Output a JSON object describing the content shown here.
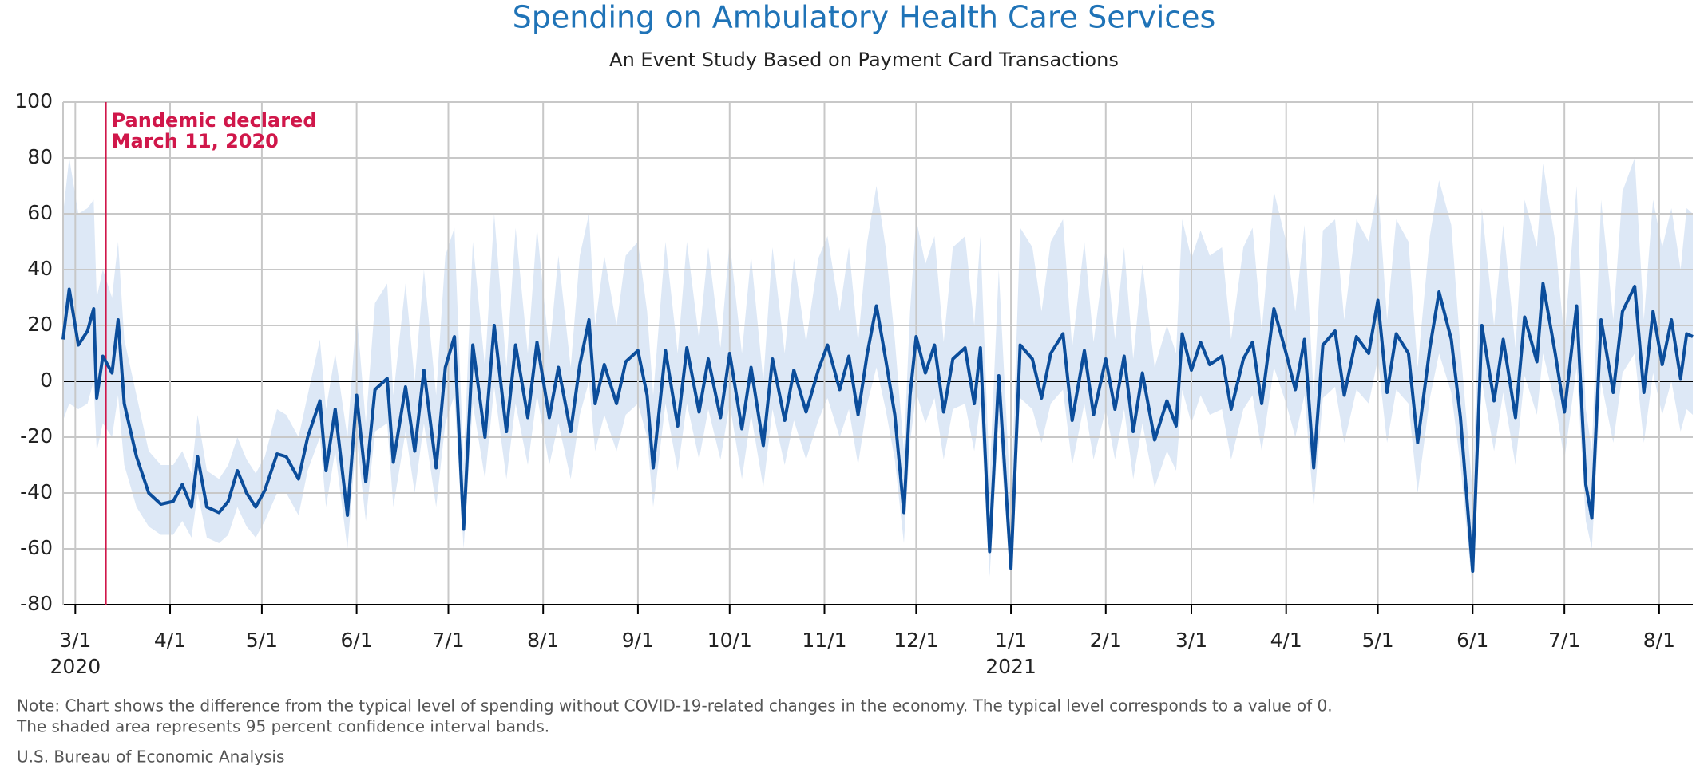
{
  "chart_data": {
    "type": "line",
    "title": "Spending on Ambulatory Health Care Services",
    "subtitle": "An Event Study Based on Payment Card Transactions",
    "color": "#0b4d9b",
    "band_color": "#dde8f6",
    "grid": true,
    "ylim": [
      -80,
      100
    ],
    "yticks": [
      -80,
      -60,
      -40,
      -20,
      0,
      20,
      40,
      60,
      80,
      100
    ],
    "xlim": [
      "2020-02-26",
      "2021-08-12"
    ],
    "xticks": [
      {
        "value": "2020-03-01",
        "label": "3/1"
      },
      {
        "value": "2020-04-01",
        "label": "4/1"
      },
      {
        "value": "2020-05-01",
        "label": "5/1"
      },
      {
        "value": "2020-06-01",
        "label": "6/1"
      },
      {
        "value": "2020-07-01",
        "label": "7/1"
      },
      {
        "value": "2020-08-01",
        "label": "8/1"
      },
      {
        "value": "2020-09-01",
        "label": "9/1"
      },
      {
        "value": "2020-10-01",
        "label": "10/1"
      },
      {
        "value": "2020-11-01",
        "label": "11/1"
      },
      {
        "value": "2020-12-01",
        "label": "12/1"
      },
      {
        "value": "2021-01-01",
        "label": "1/1"
      },
      {
        "value": "2021-02-01",
        "label": "2/1"
      },
      {
        "value": "2021-03-01",
        "label": "3/1"
      },
      {
        "value": "2021-04-01",
        "label": "4/1"
      },
      {
        "value": "2021-05-01",
        "label": "5/1"
      },
      {
        "value": "2021-06-01",
        "label": "6/1"
      },
      {
        "value": "2021-07-01",
        "label": "7/1"
      },
      {
        "value": "2021-08-01",
        "label": "8/1"
      }
    ],
    "year_labels": [
      {
        "value": "2020-03-01",
        "label": "2020"
      },
      {
        "value": "2021-01-01",
        "label": "2021"
      }
    ],
    "annotation": {
      "date": "2020-03-11",
      "lines": [
        "Pandemic declared",
        "March 11, 2020"
      ],
      "color": "#d0174a"
    },
    "x": [
      "2020-02-26",
      "2020-02-28",
      "2020-03-02",
      "2020-03-05",
      "2020-03-07",
      "2020-03-08",
      "2020-03-10",
      "2020-03-13",
      "2020-03-15",
      "2020-03-17",
      "2020-03-21",
      "2020-03-25",
      "2020-03-29",
      "2020-04-02",
      "2020-04-05",
      "2020-04-08",
      "2020-04-10",
      "2020-04-13",
      "2020-04-17",
      "2020-04-20",
      "2020-04-23",
      "2020-04-26",
      "2020-04-29",
      "2020-05-02",
      "2020-05-06",
      "2020-05-09",
      "2020-05-13",
      "2020-05-16",
      "2020-05-20",
      "2020-05-22",
      "2020-05-25",
      "2020-05-29",
      "2020-06-01",
      "2020-06-04",
      "2020-06-07",
      "2020-06-11",
      "2020-06-13",
      "2020-06-17",
      "2020-06-20",
      "2020-06-23",
      "2020-06-27",
      "2020-06-30",
      "2020-07-03",
      "2020-07-06",
      "2020-07-09",
      "2020-07-13",
      "2020-07-16",
      "2020-07-20",
      "2020-07-23",
      "2020-07-27",
      "2020-07-30",
      "2020-08-03",
      "2020-08-06",
      "2020-08-10",
      "2020-08-13",
      "2020-08-16",
      "2020-08-18",
      "2020-08-21",
      "2020-08-25",
      "2020-08-28",
      "2020-09-01",
      "2020-09-04",
      "2020-09-06",
      "2020-09-10",
      "2020-09-14",
      "2020-09-17",
      "2020-09-21",
      "2020-09-24",
      "2020-09-28",
      "2020-10-01",
      "2020-10-05",
      "2020-10-08",
      "2020-10-12",
      "2020-10-15",
      "2020-10-19",
      "2020-10-22",
      "2020-10-26",
      "2020-10-30",
      "2020-11-02",
      "2020-11-06",
      "2020-11-09",
      "2020-11-12",
      "2020-11-15",
      "2020-11-18",
      "2020-11-21",
      "2020-11-24",
      "2020-11-27",
      "2020-11-29",
      "2020-12-01",
      "2020-12-04",
      "2020-12-07",
      "2020-12-10",
      "2020-12-13",
      "2020-12-17",
      "2020-12-20",
      "2020-12-22",
      "2020-12-25",
      "2020-12-28",
      "2021-01-01",
      "2021-01-04",
      "2021-01-08",
      "2021-01-11",
      "2021-01-14",
      "2021-01-18",
      "2021-01-21",
      "2021-01-25",
      "2021-01-28",
      "2021-02-01",
      "2021-02-04",
      "2021-02-07",
      "2021-02-10",
      "2021-02-13",
      "2021-02-17",
      "2021-02-21",
      "2021-02-24",
      "2021-02-26",
      "2021-03-01",
      "2021-03-04",
      "2021-03-07",
      "2021-03-11",
      "2021-03-14",
      "2021-03-18",
      "2021-03-21",
      "2021-03-24",
      "2021-03-28",
      "2021-04-01",
      "2021-04-04",
      "2021-04-07",
      "2021-04-10",
      "2021-04-13",
      "2021-04-17",
      "2021-04-20",
      "2021-04-24",
      "2021-04-28",
      "2021-05-01",
      "2021-05-04",
      "2021-05-07",
      "2021-05-11",
      "2021-05-14",
      "2021-05-18",
      "2021-05-21",
      "2021-05-25",
      "2021-05-28",
      "2021-06-01",
      "2021-06-04",
      "2021-06-08",
      "2021-06-11",
      "2021-06-15",
      "2021-06-18",
      "2021-06-22",
      "2021-06-24",
      "2021-06-28",
      "2021-07-01",
      "2021-07-05",
      "2021-07-08",
      "2021-07-10",
      "2021-07-13",
      "2021-07-17",
      "2021-07-20",
      "2021-07-24",
      "2021-07-27",
      "2021-07-30",
      "2021-08-02",
      "2021-08-05",
      "2021-08-08",
      "2021-08-10",
      "2021-08-12"
    ],
    "values": [
      15,
      33,
      13,
      18,
      26,
      -6,
      9,
      3,
      22,
      -8,
      -27,
      -40,
      -44,
      -43,
      -37,
      -45,
      -27,
      -45,
      -47,
      -43,
      -32,
      -40,
      -45,
      -39,
      -26,
      -27,
      -35,
      -20,
      -7,
      -32,
      -10,
      -48,
      -5,
      -36,
      -3,
      1,
      -29,
      -2,
      -25,
      4,
      -31,
      5,
      16,
      -53,
      13,
      -20,
      20,
      -18,
      13,
      -13,
      14,
      -13,
      5,
      -18,
      6,
      22,
      -8,
      6,
      -8,
      7,
      11,
      -5,
      -31,
      11,
      -16,
      12,
      -11,
      8,
      -13,
      10,
      -17,
      5,
      -23,
      8,
      -14,
      4,
      -11,
      4,
      13,
      -3,
      9,
      -12,
      10,
      27,
      8,
      -12,
      -47,
      -5,
      16,
      3,
      13,
      -11,
      8,
      12,
      -8,
      12,
      -61,
      2,
      -67,
      13,
      8,
      -6,
      10,
      17,
      -14,
      11,
      -12,
      8,
      -10,
      9,
      -18,
      3,
      -21,
      -7,
      -16,
      17,
      4,
      14,
      6,
      9,
      -10,
      8,
      14,
      -8,
      26,
      10,
      -3,
      15,
      -31,
      13,
      18,
      -5,
      16,
      10,
      29,
      -4,
      17,
      10,
      -22,
      12,
      32,
      15,
      -13,
      -68,
      20,
      -7,
      15,
      -13,
      23,
      7,
      35,
      10,
      -11,
      27,
      -37,
      -49,
      22,
      -4,
      25,
      34,
      -4,
      25,
      6,
      22,
      1,
      17,
      16
    ],
    "lower": [
      -14,
      -8,
      -10,
      -8,
      0,
      -25,
      -15,
      -20,
      -5,
      -30,
      -45,
      -52,
      -55,
      -55,
      -50,
      -56,
      -40,
      -56,
      -58,
      -55,
      -45,
      -52,
      -56,
      -50,
      -40,
      -40,
      -48,
      -32,
      -20,
      -45,
      -25,
      -60,
      -20,
      -50,
      -18,
      -15,
      -45,
      -18,
      -40,
      -15,
      -45,
      -15,
      -5,
      -60,
      -8,
      -35,
      -2,
      -35,
      -8,
      -30,
      -5,
      -30,
      -15,
      -35,
      -12,
      0,
      -25,
      -12,
      -25,
      -12,
      -8,
      -20,
      -45,
      -8,
      -32,
      -8,
      -28,
      -10,
      -28,
      -8,
      -35,
      -12,
      -38,
      -10,
      -30,
      -14,
      -28,
      -14,
      -6,
      -20,
      -10,
      -30,
      -8,
      5,
      -10,
      -28,
      -58,
      -22,
      -4,
      -15,
      -6,
      -28,
      -10,
      -8,
      -25,
      -8,
      -70,
      -15,
      -72,
      -6,
      -10,
      -22,
      -8,
      -3,
      -30,
      -8,
      -28,
      -10,
      -28,
      -10,
      -35,
      -15,
      -38,
      -25,
      -32,
      -3,
      -15,
      -5,
      -12,
      -10,
      -28,
      -10,
      -5,
      -25,
      5,
      -8,
      -20,
      -5,
      -45,
      -6,
      -2,
      -22,
      -3,
      -8,
      8,
      -22,
      -3,
      -8,
      -40,
      -6,
      10,
      -4,
      -30,
      -75,
      0,
      -25,
      -4,
      -30,
      2,
      -12,
      10,
      -8,
      -28,
      5,
      -50,
      -60,
      0,
      -22,
      3,
      10,
      -22,
      3,
      -12,
      0,
      -18,
      -10,
      -12
    ],
    "upper": [
      60,
      80,
      60,
      62,
      65,
      30,
      40,
      30,
      50,
      15,
      -5,
      -25,
      -30,
      -30,
      -25,
      -33,
      -12,
      -32,
      -35,
      -30,
      -20,
      -28,
      -33,
      -27,
      -10,
      -12,
      -20,
      -5,
      15,
      -10,
      10,
      -20,
      25,
      -15,
      28,
      35,
      -5,
      35,
      0,
      40,
      -5,
      45,
      55,
      -30,
      50,
      5,
      60,
      5,
      55,
      10,
      55,
      10,
      45,
      5,
      45,
      60,
      20,
      45,
      20,
      45,
      50,
      25,
      -5,
      50,
      10,
      50,
      15,
      48,
      12,
      50,
      10,
      45,
      0,
      48,
      10,
      44,
      14,
      44,
      52,
      25,
      48,
      14,
      50,
      70,
      48,
      15,
      -25,
      25,
      58,
      42,
      52,
      14,
      48,
      52,
      20,
      52,
      -35,
      40,
      -45,
      55,
      48,
      25,
      50,
      58,
      12,
      50,
      14,
      48,
      15,
      48,
      8,
      42,
      5,
      20,
      10,
      58,
      44,
      54,
      45,
      48,
      15,
      48,
      55,
      18,
      68,
      50,
      25,
      56,
      -5,
      54,
      58,
      22,
      58,
      50,
      70,
      22,
      58,
      50,
      5,
      52,
      72,
      56,
      12,
      -40,
      62,
      20,
      56,
      12,
      65,
      48,
      78,
      50,
      15,
      70,
      -10,
      -25,
      65,
      22,
      68,
      80,
      22,
      65,
      48,
      62,
      40,
      62,
      60
    ],
    "note": [
      "Note: Chart shows the difference from the typical level of spending without COVID-19-related changes in the economy. The typical level corresponds to a value of 0.",
      "The shaded area represents 95 percent confidence interval bands."
    ],
    "source": "U.S. Bureau of Economic Analysis"
  }
}
